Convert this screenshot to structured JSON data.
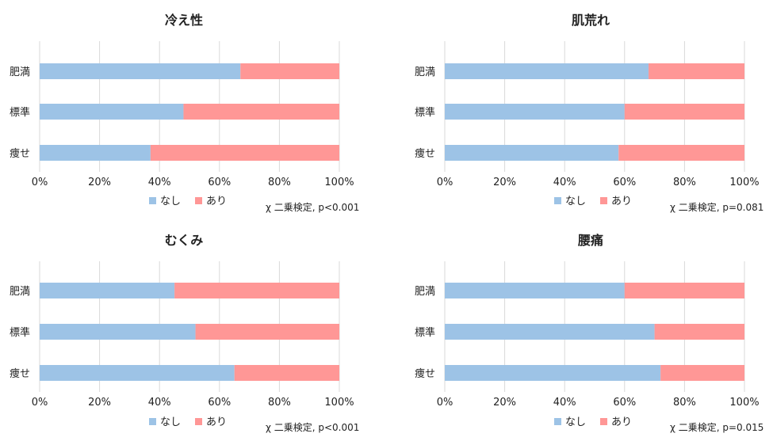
{
  "chart_data": [
    {
      "type": "bar",
      "orientation": "horizontal",
      "stacked": "percent",
      "title": "冷え性",
      "categories": [
        "肥満",
        "標準",
        "痩せ"
      ],
      "series": [
        {
          "name": "なし",
          "values": [
            67,
            48,
            37
          ]
        },
        {
          "name": "あり",
          "values": [
            33,
            52,
            63
          ]
        }
      ],
      "xlim": [
        0,
        100
      ],
      "ticks": [
        "0%",
        "20%",
        "40%",
        "60%",
        "80%",
        "100%"
      ],
      "grid": true,
      "legend": "bottom",
      "annotation": "χ 二乗検定, p<0.001"
    },
    {
      "type": "bar",
      "orientation": "horizontal",
      "stacked": "percent",
      "title": "肌荒れ",
      "categories": [
        "肥満",
        "標準",
        "痩せ"
      ],
      "series": [
        {
          "name": "なし",
          "values": [
            68,
            60,
            58
          ]
        },
        {
          "name": "あり",
          "values": [
            32,
            40,
            42
          ]
        }
      ],
      "xlim": [
        0,
        100
      ],
      "ticks": [
        "0%",
        "20%",
        "40%",
        "60%",
        "80%",
        "100%"
      ],
      "grid": true,
      "legend": "bottom",
      "annotation": "χ 二乗検定, p=0.081"
    },
    {
      "type": "bar",
      "orientation": "horizontal",
      "stacked": "percent",
      "title": "むくみ",
      "categories": [
        "肥満",
        "標準",
        "痩せ"
      ],
      "series": [
        {
          "name": "なし",
          "values": [
            45,
            52,
            65
          ]
        },
        {
          "name": "あり",
          "values": [
            55,
            48,
            35
          ]
        }
      ],
      "xlim": [
        0,
        100
      ],
      "ticks": [
        "0%",
        "20%",
        "40%",
        "60%",
        "80%",
        "100%"
      ],
      "grid": true,
      "legend": "bottom",
      "annotation": "χ 二乗検定, p<0.001"
    },
    {
      "type": "bar",
      "orientation": "horizontal",
      "stacked": "percent",
      "title": "腰痛",
      "categories": [
        "肥満",
        "標準",
        "痩せ"
      ],
      "series": [
        {
          "name": "なし",
          "values": [
            60,
            70,
            72
          ]
        },
        {
          "name": "あり",
          "values": [
            40,
            30,
            28
          ]
        }
      ],
      "xlim": [
        0,
        100
      ],
      "ticks": [
        "0%",
        "20%",
        "40%",
        "60%",
        "80%",
        "100%"
      ],
      "grid": true,
      "legend": "bottom",
      "annotation": "χ 二乗検定, p=0.015"
    }
  ],
  "colors": {
    "none": "#9dc3e6",
    "present": "#ff9796"
  }
}
